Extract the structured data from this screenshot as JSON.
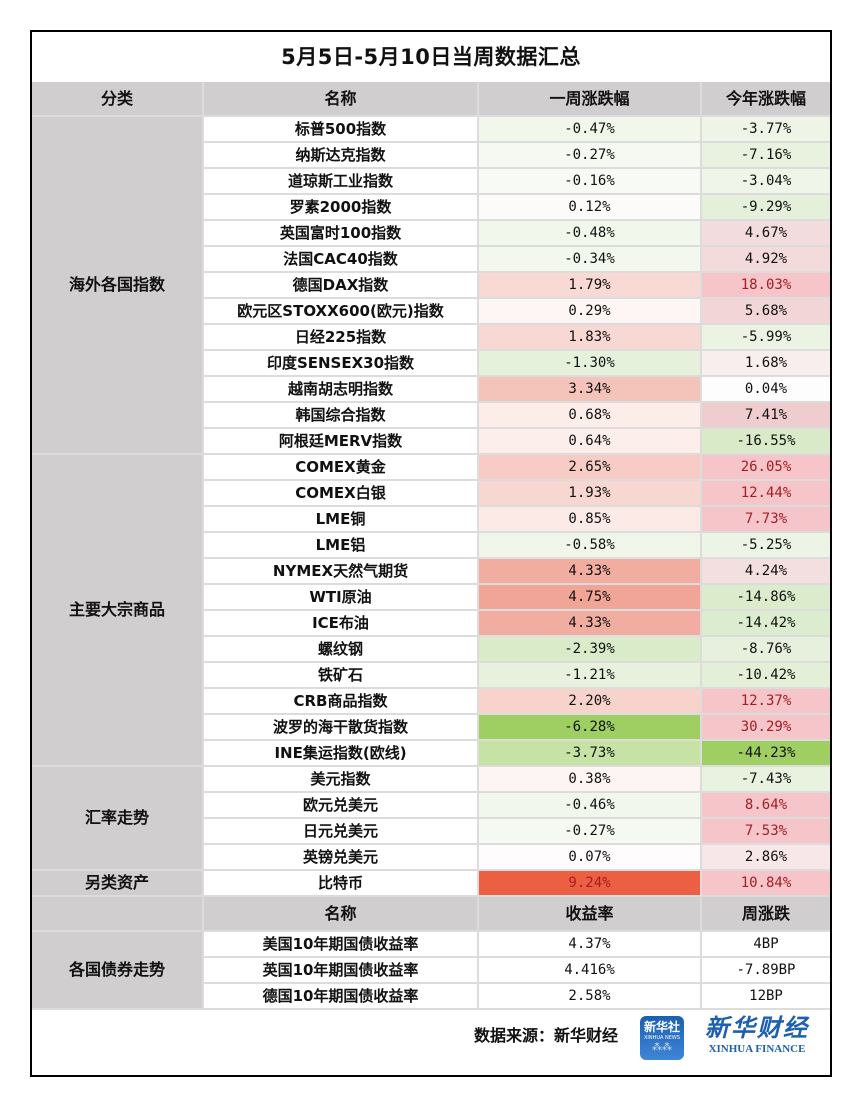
{
  "title": "5月5日-5月10日当周数据汇总",
  "header": {
    "category": "分类",
    "name": "名称",
    "week": "一周涨跌幅",
    "ytd": "今年涨跌幅"
  },
  "colors": {
    "header_bg": "#d0cecf",
    "grid": "#dcdcdc",
    "red_text": "#a31e23",
    "brand_blue": "#1d5fb0"
  },
  "groups": [
    {
      "category": "海外各国指数",
      "rows": [
        {
          "name": "标普500指数",
          "week": "-0.47%",
          "ytd": "-3.77%",
          "week_bg": "#f1f7eb",
          "ytd_bg": "#eef5e7",
          "ytd_red": false
        },
        {
          "name": "纳斯达克指数",
          "week": "-0.27%",
          "ytd": "-7.16%",
          "week_bg": "#f5f9f1",
          "ytd_bg": "#e9f2df",
          "ytd_red": false
        },
        {
          "name": "道琼斯工业指数",
          "week": "-0.16%",
          "ytd": "-3.04%",
          "week_bg": "#f8fbf5",
          "ytd_bg": "#eff6e9",
          "ytd_red": false
        },
        {
          "name": "罗素2000指数",
          "week": "0.12%",
          "ytd": "-9.29%",
          "week_bg": "#fdfafa",
          "ytd_bg": "#e5f0da",
          "ytd_red": false
        },
        {
          "name": "英国富时100指数",
          "week": "-0.48%",
          "ytd": "4.67%",
          "week_bg": "#f1f7eb",
          "ytd_bg": "#f3dcdd",
          "ytd_red": false
        },
        {
          "name": "法国CAC40指数",
          "week": "-0.34%",
          "ytd": "4.92%",
          "week_bg": "#f3f8ee",
          "ytd_bg": "#f3dadb",
          "ytd_red": false
        },
        {
          "name": "德国DAX指数",
          "week": "1.79%",
          "ytd": "18.03%",
          "week_bg": "#f8d9d3",
          "ytd_bg": "#f5c5ca",
          "ytd_red": true
        },
        {
          "name": "欧元区STOXX600(欧元)指数",
          "week": "0.29%",
          "ytd": "5.68%",
          "week_bg": "#fdf6f5",
          "ytd_bg": "#f2d6d7",
          "ytd_red": false
        },
        {
          "name": "日经225指数",
          "week": "1.83%",
          "ytd": "-5.99%",
          "week_bg": "#f8d8d2",
          "ytd_bg": "#ebf3e3",
          "ytd_red": false
        },
        {
          "name": "印度SENSEX30指数",
          "week": "-1.30%",
          "ytd": "1.68%",
          "week_bg": "#e6f1dc",
          "ytd_bg": "#f9eeee",
          "ytd_red": false
        },
        {
          "name": "越南胡志明指数",
          "week": "3.34%",
          "ytd": "0.04%",
          "week_bg": "#f4c3ba",
          "ytd_bg": "#fefdfd",
          "ytd_red": false
        },
        {
          "name": "韩国综合指数",
          "week": "0.68%",
          "ytd": "7.41%",
          "week_bg": "#fcede9",
          "ytd_bg": "#efcdcf",
          "ytd_red": false
        },
        {
          "name": "阿根廷MERV指数",
          "week": "0.64%",
          "ytd": "-16.55%",
          "week_bg": "#fceeeb",
          "ytd_bg": "#d8eac8",
          "ytd_red": false
        }
      ]
    },
    {
      "category": "主要大宗商品",
      "rows": [
        {
          "name": "COMEX黄金",
          "week": "2.65%",
          "ytd": "26.05%",
          "week_bg": "#f6ccc4",
          "ytd_bg": "#f5c5ca",
          "ytd_red": true
        },
        {
          "name": "COMEX白银",
          "week": "1.93%",
          "ytd": "12.44%",
          "week_bg": "#f8d7d1",
          "ytd_bg": "#f5c5ca",
          "ytd_red": true
        },
        {
          "name": "LME铜",
          "week": "0.85%",
          "ytd": "7.73%",
          "week_bg": "#fceae7",
          "ytd_bg": "#f5c5ca",
          "ytd_red": true
        },
        {
          "name": "LME铝",
          "week": "-0.58%",
          "ytd": "-5.25%",
          "week_bg": "#f0f6ea",
          "ytd_bg": "#ecf4e5",
          "ytd_red": false
        },
        {
          "name": "NYMEX天然气期货",
          "week": "4.33%",
          "ytd": "4.24%",
          "week_bg": "#f2ada1",
          "ytd_bg": "#f4dfe0",
          "ytd_red": false
        },
        {
          "name": "WTI原油",
          "week": "4.75%",
          "ytd": "-14.86%",
          "week_bg": "#f1a597",
          "ytd_bg": "#dbebcc",
          "ytd_red": false
        },
        {
          "name": "ICE布油",
          "week": "4.33%",
          "ytd": "-14.42%",
          "week_bg": "#f2ada1",
          "ytd_bg": "#dcecce",
          "ytd_red": false
        },
        {
          "name": "螺纹钢",
          "week": "-2.39%",
          "ytd": "-8.76%",
          "week_bg": "#d9ebc9",
          "ytd_bg": "#e6f0dc",
          "ytd_red": false
        },
        {
          "name": "铁矿石",
          "week": "-1.21%",
          "ytd": "-10.42%",
          "week_bg": "#e7f1de",
          "ytd_bg": "#e3efd7",
          "ytd_red": false
        },
        {
          "name": "CRB商品指数",
          "week": "2.20%",
          "ytd": "12.37%",
          "week_bg": "#f7d3cc",
          "ytd_bg": "#f5c5ca",
          "ytd_red": true
        },
        {
          "name": "波罗的海干散货指数",
          "week": "-6.28%",
          "ytd": "30.29%",
          "week_bg": "#9fcf62",
          "ytd_bg": "#f5c5ca",
          "ytd_red": true
        },
        {
          "name": "INE集运指数(欧线)",
          "week": "-3.73%",
          "ytd": "-44.23%",
          "week_bg": "#c6e2a4",
          "ytd_bg": "#9fcf62",
          "ytd_red": false
        }
      ]
    },
    {
      "category": "汇率走势",
      "rows": [
        {
          "name": "美元指数",
          "week": "0.38%",
          "ytd": "-7.43%",
          "week_bg": "#fdf5f4",
          "ytd_bg": "#e8f2df",
          "ytd_red": false
        },
        {
          "name": "欧元兑美元",
          "week": "-0.46%",
          "ytd": "8.64%",
          "week_bg": "#f1f7ec",
          "ytd_bg": "#f5c5ca",
          "ytd_red": true
        },
        {
          "name": "日元兑美元",
          "week": "-0.27%",
          "ytd": "7.53%",
          "week_bg": "#f5f9f1",
          "ytd_bg": "#f5c5ca",
          "ytd_red": true
        },
        {
          "name": "英镑兑美元",
          "week": "0.07%",
          "ytd": "2.86%",
          "week_bg": "#fefcfc",
          "ytd_bg": "#f7e7e8",
          "ytd_red": false
        }
      ]
    },
    {
      "category": "另类资产",
      "rows": [
        {
          "name": "比特币",
          "week": "9.24%",
          "ytd": "10.84%",
          "week_bg": "#ec5f43",
          "ytd_bg": "#f5c5ca",
          "week_red": true,
          "ytd_red": true
        }
      ]
    }
  ],
  "bonds": {
    "header": {
      "name": "名称",
      "yield": "收益率",
      "weekly": "周涨跌"
    },
    "category": "各国债券走势",
    "rows": [
      {
        "name": "美国10年期国债收益率",
        "yield": "4.37%",
        "weekly": "4BP"
      },
      {
        "name": "英国10年期国债收益率",
        "yield": "4.416%",
        "weekly": "-7.89BP"
      },
      {
        "name": "德国10年期国债收益率",
        "yield": "2.58%",
        "weekly": "12BP"
      }
    ]
  },
  "footer": {
    "source": "数据来源：新华财经",
    "logo_news_cn": "新华社",
    "logo_news_en": "XINHUA NEWS",
    "logo_finance_cn": "新华财经",
    "logo_finance_en": "XINHUA FINANCE"
  }
}
